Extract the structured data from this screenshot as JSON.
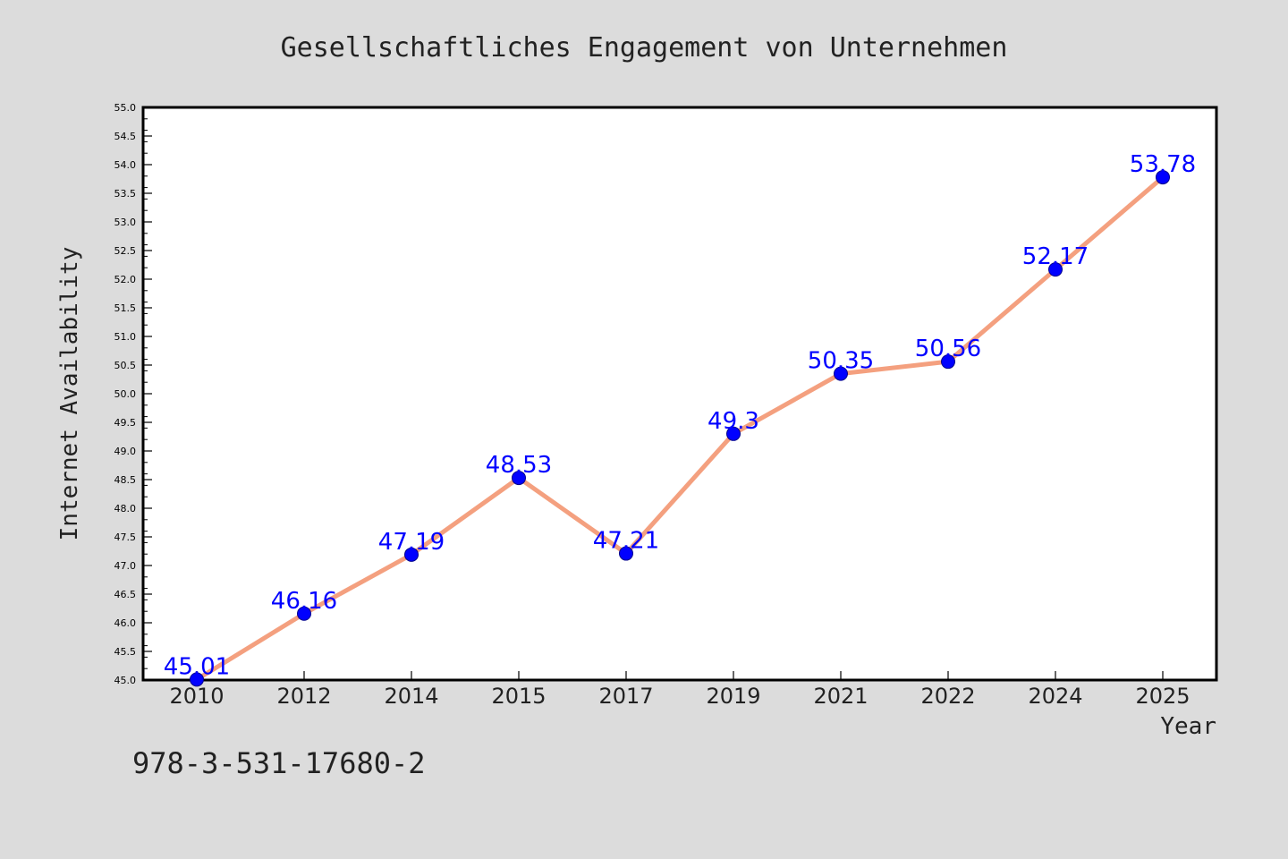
{
  "chart_data": {
    "type": "line",
    "title": "Gesellschaftliches Engagement von Unternehmen",
    "xlabel": "Year",
    "ylabel": "Internet Availability",
    "categories": [
      "2010",
      "2012",
      "2014",
      "2015",
      "2017",
      "2019",
      "2021",
      "2022",
      "2024",
      "2025"
    ],
    "values": [
      45.01,
      46.16,
      47.19,
      48.53,
      47.21,
      49.3,
      50.35,
      50.56,
      52.17,
      53.78
    ],
    "data_labels": [
      "45.01",
      "46.16",
      "47.19",
      "48.53",
      "47.21",
      "49.3",
      "50.35",
      "50.56",
      "52.17",
      "53.78"
    ],
    "ylim": [
      45.0,
      55.0
    ],
    "yticks": [
      "45.0",
      "45.5",
      "46.0",
      "46.5",
      "47.0",
      "47.5",
      "48.0",
      "48.5",
      "49.0",
      "49.5",
      "50.0",
      "50.5",
      "51.0",
      "51.5",
      "52.0",
      "52.5",
      "53.0",
      "53.5",
      "54.0",
      "54.5",
      "55.0"
    ],
    "grid": false,
    "colors": {
      "background": "#dcdcdc",
      "plot_background": "#ffffff",
      "line": "#f4a07f",
      "marker": "#0000ff",
      "data_label": "#0000ff",
      "text": "#222222"
    }
  },
  "annotation": {
    "isbn": "978-3-531-17680-2"
  }
}
